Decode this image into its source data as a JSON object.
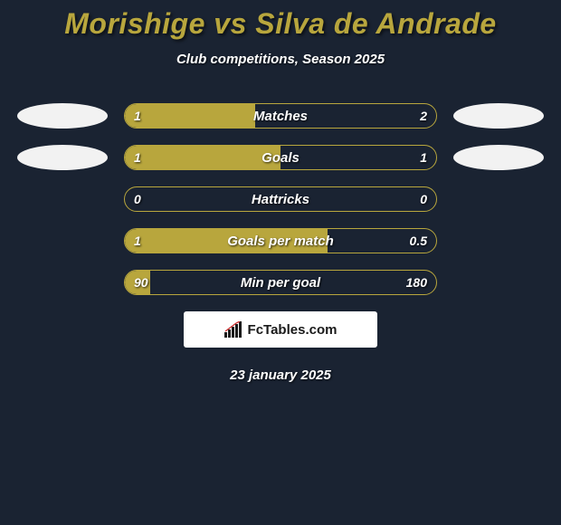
{
  "title": "Morishige vs Silva de Andrade",
  "subtitle": "Club competitions, Season 2025",
  "colors": {
    "background": "#1a2332",
    "accent": "#b8a63d",
    "ellipse": "#f2f2f2",
    "text": "#ffffff"
  },
  "rows": [
    {
      "label": "Matches",
      "left": "1",
      "right": "2",
      "fill_pct": 42,
      "show_left_ellipse": true,
      "show_right_ellipse": true
    },
    {
      "label": "Goals",
      "left": "1",
      "right": "1",
      "fill_pct": 50,
      "show_left_ellipse": true,
      "show_right_ellipse": true
    },
    {
      "label": "Hattricks",
      "left": "0",
      "right": "0",
      "fill_pct": 0,
      "show_left_ellipse": false,
      "show_right_ellipse": false
    },
    {
      "label": "Goals per match",
      "left": "1",
      "right": "0.5",
      "fill_pct": 65,
      "show_left_ellipse": false,
      "show_right_ellipse": false
    },
    {
      "label": "Min per goal",
      "left": "90",
      "right": "180",
      "fill_pct": 8,
      "show_left_ellipse": false,
      "show_right_ellipse": false
    }
  ],
  "logo_text": "FcTables.com",
  "date": "23 january 2025"
}
